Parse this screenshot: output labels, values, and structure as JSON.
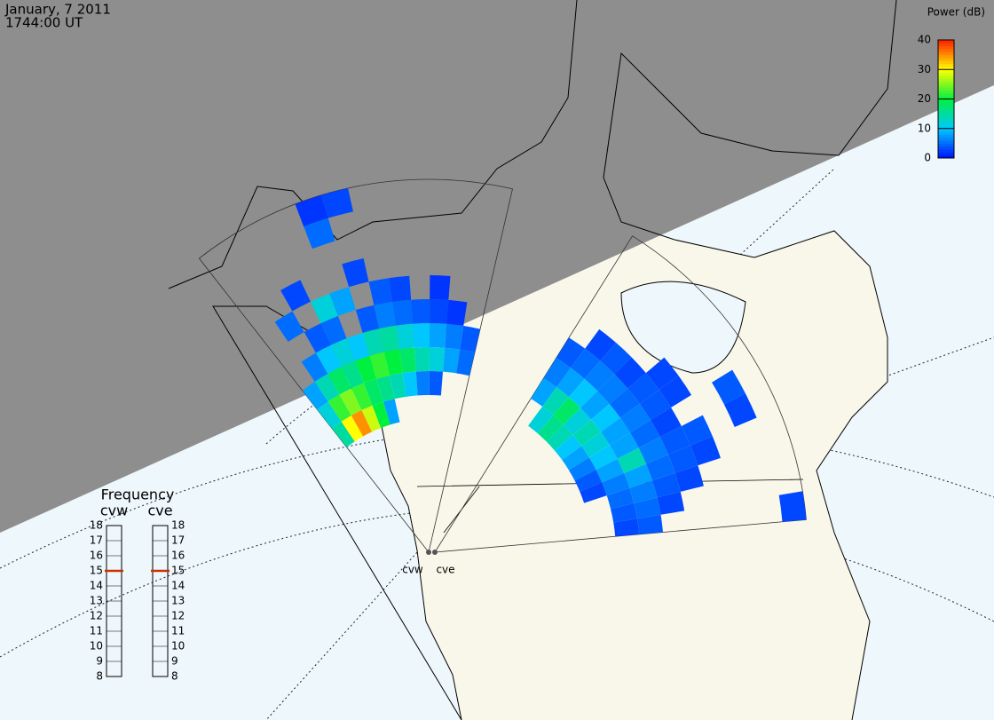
{
  "header": {
    "date": "January, 7 2011",
    "time": "1744:00 UT"
  },
  "colorbar": {
    "title": "Power (dB)",
    "lim": [
      0,
      40
    ],
    "ticks": [
      0,
      10,
      20,
      30,
      40
    ],
    "colors": [
      "#0010ff",
      "#00c8ff",
      "#00f040",
      "#ffff00",
      "#ff2000"
    ]
  },
  "frequency": {
    "title": "Frequency",
    "lim": [
      8,
      18
    ],
    "ticks": [
      8,
      9,
      10,
      11,
      12,
      13,
      14,
      15,
      16,
      17,
      18
    ],
    "marker_color": "#c83200"
  },
  "radars": [
    {
      "name": "cvw",
      "frequency": 15,
      "power": [
        [
          15,
          12,
          8,
          null,
          null,
          null,
          null,
          null,
          null,
          null
        ],
        [
          30,
          22,
          14,
          6,
          null,
          5,
          null,
          null,
          null,
          null
        ],
        [
          35,
          25,
          18,
          10,
          4,
          null,
          3,
          null,
          null,
          null
        ],
        [
          28,
          22,
          16,
          12,
          5,
          12,
          null,
          null,
          null,
          null
        ],
        [
          20,
          18,
          20,
          10,
          null,
          8,
          null,
          null,
          5,
          2
        ],
        [
          8,
          16,
          22,
          14,
          4,
          null,
          3,
          null,
          null,
          3
        ],
        [
          null,
          14,
          20,
          15,
          6,
          4,
          null,
          null,
          null,
          null
        ],
        [
          null,
          10,
          18,
          12,
          5,
          3,
          null,
          null,
          null,
          null
        ],
        [
          null,
          6,
          14,
          10,
          4,
          null,
          null,
          null,
          null,
          null
        ],
        [
          null,
          4,
          12,
          8,
          3,
          2,
          null,
          null,
          null,
          null
        ],
        [
          null,
          null,
          8,
          6,
          2,
          null,
          null,
          null,
          null,
          null
        ],
        [
          null,
          null,
          5,
          4,
          null,
          null,
          null,
          null,
          null,
          null
        ]
      ]
    },
    {
      "name": "cve",
      "frequency": 15,
      "power": [
        [
          null,
          null,
          8,
          6,
          4,
          null,
          null,
          null,
          null,
          null
        ],
        [
          null,
          12,
          14,
          8,
          5,
          3,
          null,
          null,
          null,
          null
        ],
        [
          null,
          16,
          18,
          10,
          6,
          4,
          null,
          null,
          null,
          null
        ],
        [
          null,
          14,
          12,
          8,
          6,
          3,
          null,
          null,
          null,
          null
        ],
        [
          null,
          10,
          14,
          10,
          5,
          4,
          3,
          null,
          null,
          null
        ],
        [
          null,
          8,
          12,
          8,
          6,
          4,
          3,
          null,
          null,
          null
        ],
        [
          null,
          6,
          10,
          8,
          5,
          3,
          null,
          null,
          4,
          null
        ],
        [
          null,
          4,
          8,
          14,
          6,
          4,
          4,
          null,
          3,
          null
        ],
        [
          null,
          3,
          6,
          8,
          5,
          4,
          3,
          null,
          null,
          null
        ],
        [
          null,
          null,
          5,
          6,
          4,
          3,
          null,
          null,
          null,
          null
        ],
        [
          null,
          null,
          4,
          5,
          3,
          null,
          null,
          null,
          null,
          null
        ],
        [
          null,
          null,
          3,
          4,
          null,
          null,
          null,
          null,
          null,
          3
        ]
      ]
    }
  ]
}
